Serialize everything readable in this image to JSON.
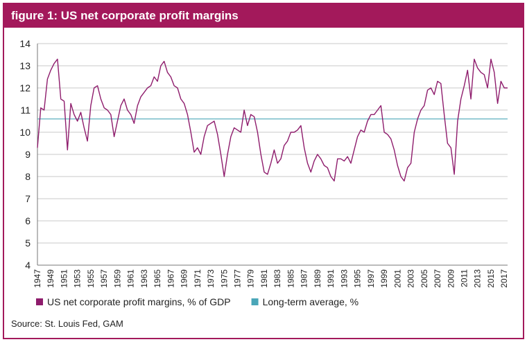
{
  "chart_data": {
    "type": "line",
    "title": "figure 1: US net corporate profit margins",
    "source": "Source: St. Louis Fed, GAM",
    "categories": [
      "1947",
      null,
      null,
      null,
      "1949",
      null,
      null,
      null,
      "1951",
      null,
      null,
      null,
      "1953",
      null,
      null,
      null,
      "1955",
      null,
      null,
      null,
      "1957",
      null,
      null,
      null,
      "1959",
      null,
      null,
      null,
      "1961",
      null,
      null,
      null,
      "1963",
      null,
      null,
      null,
      "1965",
      null,
      null,
      null,
      "1967",
      null,
      null,
      null,
      "1969",
      null,
      null,
      null,
      "1971",
      null,
      null,
      null,
      "1973",
      null,
      null,
      null,
      "1975",
      null,
      null,
      null,
      "1977",
      null,
      null,
      null,
      "1979",
      null,
      null,
      null,
      "1981",
      null,
      null,
      null,
      "1983",
      null,
      null,
      null,
      "1985",
      null,
      null,
      null,
      "1987",
      null,
      null,
      null,
      "1989",
      null,
      null,
      null,
      "1991",
      null,
      null,
      null,
      "1993",
      null,
      null,
      null,
      "1995",
      null,
      null,
      null,
      "1997",
      null,
      null,
      null,
      "1999",
      null,
      null,
      null,
      "2001",
      null,
      null,
      null,
      "2003",
      null,
      null,
      null,
      "2005",
      null,
      null,
      null,
      "2007",
      null,
      null,
      null,
      "2009",
      null,
      null,
      null,
      "2011",
      null,
      null,
      null,
      "2013",
      null,
      null,
      null,
      "2015",
      null,
      null,
      null,
      "2017",
      null
    ],
    "series": [
      {
        "name": "US net corporate profit margins, % of GDP",
        "color": "#8e1c6c",
        "values": [
          9.3,
          11.1,
          11.0,
          12.4,
          12.8,
          13.1,
          13.3,
          11.5,
          11.4,
          9.2,
          11.3,
          10.8,
          10.5,
          10.9,
          10.2,
          9.6,
          11.2,
          12.0,
          12.1,
          11.5,
          11.1,
          11.0,
          10.8,
          9.8,
          10.5,
          11.2,
          11.5,
          11.0,
          10.8,
          10.4,
          11.2,
          11.6,
          11.8,
          12.0,
          12.1,
          12.5,
          12.3,
          13.0,
          13.2,
          12.7,
          12.5,
          12.1,
          12.0,
          11.5,
          11.3,
          10.8,
          10.0,
          9.1,
          9.3,
          9.0,
          9.8,
          10.3,
          10.4,
          10.5,
          9.9,
          9.0,
          8.0,
          9.0,
          9.8,
          10.2,
          10.1,
          10.0,
          11.0,
          10.3,
          10.8,
          10.7,
          10.0,
          9.0,
          8.2,
          8.1,
          8.6,
          9.2,
          8.6,
          8.8,
          9.4,
          9.6,
          10.0,
          10.0,
          10.1,
          10.3,
          9.3,
          8.6,
          8.2,
          8.7,
          9.0,
          8.8,
          8.5,
          8.4,
          8.0,
          7.8,
          8.8,
          8.8,
          8.7,
          8.9,
          8.6,
          9.2,
          9.8,
          10.1,
          10.0,
          10.5,
          10.8,
          10.8,
          11.0,
          11.2,
          10.0,
          9.9,
          9.7,
          9.2,
          8.5,
          8.0,
          7.8,
          8.4,
          8.6,
          10.0,
          10.6,
          11.0,
          11.2,
          11.9,
          12.0,
          11.7,
          12.3,
          12.2,
          10.8,
          9.5,
          9.3,
          8.1,
          10.5,
          11.5,
          12.1,
          12.8,
          11.5,
          13.3,
          12.9,
          12.7,
          12.6,
          12.0,
          13.3,
          12.7,
          11.3,
          12.3,
          12.0,
          12.0
        ]
      }
    ],
    "reference_lines": [
      {
        "name": "Long-term average, %",
        "color": "#4aa6b8",
        "value": 10.6
      }
    ],
    "ylim": [
      4,
      14
    ],
    "yticks": [
      4,
      5,
      6,
      7,
      8,
      9,
      10,
      11,
      12,
      13,
      14
    ],
    "grid": true
  }
}
